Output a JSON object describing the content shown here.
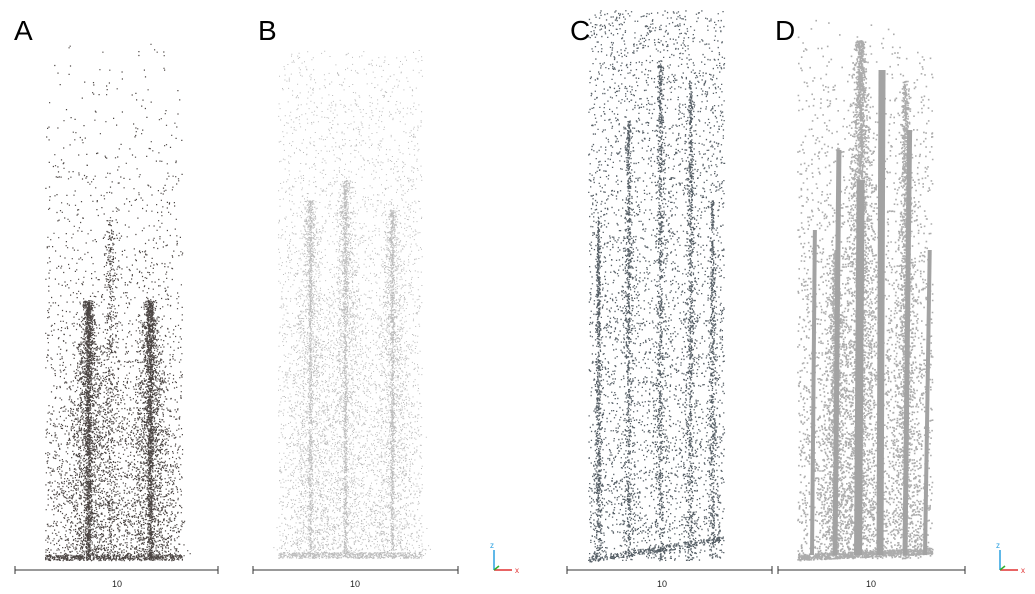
{
  "panels": [
    {
      "label": "A",
      "scale_label": "10"
    },
    {
      "label": "B",
      "scale_label": "10"
    },
    {
      "label": "C",
      "scale_label": "10"
    },
    {
      "label": "D",
      "scale_label": "10"
    }
  ],
  "axis_gizmos": [
    {
      "z": "z",
      "x": "x"
    },
    {
      "z": "z",
      "x": "x"
    }
  ]
}
